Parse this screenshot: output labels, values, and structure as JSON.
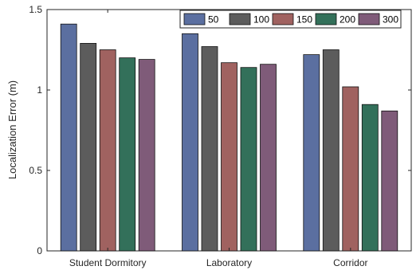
{
  "chart_data": {
    "type": "bar",
    "title": "",
    "xlabel": "",
    "ylabel": "Localization Error (m)",
    "ylim": [
      0,
      1.5
    ],
    "yticks": [
      0,
      0.5,
      1,
      1.5
    ],
    "ytick_labels": [
      "0",
      "0.5",
      "1",
      "1.5"
    ],
    "categories": [
      "Student Dormitory",
      "Laboratory",
      "Corridor"
    ],
    "series": [
      {
        "name": "50",
        "color": "#5B6FA0",
        "values": [
          1.41,
          1.35,
          1.22
        ]
      },
      {
        "name": "100",
        "color": "#5C5C5C",
        "values": [
          1.29,
          1.27,
          1.25
        ]
      },
      {
        "name": "150",
        "color": "#A06260",
        "values": [
          1.25,
          1.17,
          1.02
        ]
      },
      {
        "name": "200",
        "color": "#33705A",
        "values": [
          1.2,
          1.14,
          0.91
        ]
      },
      {
        "name": "300",
        "color": "#7F5B79",
        "values": [
          1.19,
          1.16,
          0.87
        ]
      }
    ],
    "grid": false,
    "legend": "top-right, horizontal"
  }
}
